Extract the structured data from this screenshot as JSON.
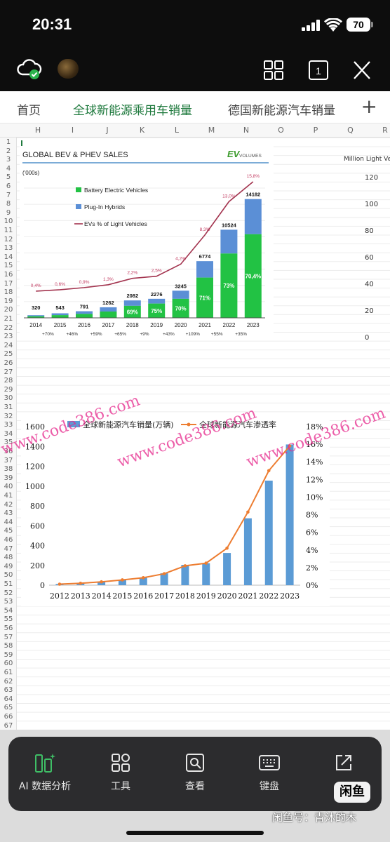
{
  "status": {
    "time": "20:31",
    "battery": "70"
  },
  "header": {
    "icons": [
      "cloud-check-icon",
      "avatar",
      "grid-icon",
      "window-count-icon",
      "close-icon"
    ],
    "window_count": "1"
  },
  "sheet_tabs": [
    {
      "label": "首页",
      "active": false
    },
    {
      "label": "全球新能源乘用车销量",
      "active": true
    },
    {
      "label": "德国新能源汽车销量",
      "active": false
    }
  ],
  "columns": [
    "H",
    "I",
    "J",
    "K",
    "L",
    "M",
    "N",
    "O",
    "P",
    "Q",
    "R"
  ],
  "rows": [
    "1",
    "2",
    "3",
    "4",
    "5",
    "6",
    "7",
    "8",
    "9",
    "10",
    "11",
    "12",
    "13",
    "14",
    "15",
    "16",
    "17",
    "18",
    "19",
    "20",
    "21",
    "22",
    "23",
    "24",
    "25",
    "26",
    "27",
    "28",
    "29",
    "30",
    "31",
    "32",
    "33",
    "34",
    "35",
    "36",
    "37",
    "38",
    "39",
    "40",
    "41",
    "42",
    "43",
    "44",
    "45",
    "46",
    "47",
    "48",
    "49",
    "50",
    "51",
    "52",
    "53",
    "54",
    "55",
    "56",
    "57",
    "58",
    "59",
    "60",
    "61",
    "62",
    "63",
    "64",
    "65",
    "66",
    "67"
  ],
  "chart_data": [
    {
      "type": "bar",
      "stacked": true,
      "title": "GLOBAL BEV & PHEV SALES",
      "brand": "EV VOLUMES",
      "unit_label": "('000s)",
      "categories": [
        "2014",
        "2015",
        "2016",
        "2017",
        "2018",
        "2019",
        "2020",
        "2021",
        "2022",
        "2023"
      ],
      "totals": [
        320,
        543,
        791,
        1262,
        2082,
        2276,
        3245,
        6774,
        10524,
        14182
      ],
      "bev_share_labels": [
        "",
        "",
        "",
        "",
        "69%",
        "75%",
        "70%",
        "71%",
        "73%",
        "70,4%"
      ],
      "bev_share": [
        0.6,
        0.6,
        0.6,
        0.6,
        0.69,
        0.75,
        0.7,
        0.71,
        0.73,
        0.704
      ],
      "ev_pct_labels": [
        "0,4%",
        "0,6%",
        "0,9%",
        "1,3%",
        "2,2%",
        "2,5%",
        "4,2%",
        "8,3%",
        "13,0%",
        "15,8%"
      ],
      "ev_pct": [
        0.4,
        0.6,
        0.9,
        1.3,
        2.2,
        2.5,
        4.2,
        8.3,
        13.0,
        15.8
      ],
      "growth_labels": [
        "+70%",
        "+46%",
        "+59%",
        "+65%",
        "+9%",
        "+43%",
        "+109%",
        "+55%",
        "+35%"
      ],
      "legend": [
        "Battery Electric Vehicles",
        "Plug-In Hybrids",
        "EVs % of Light Vehicles"
      ],
      "colors": {
        "bev": "#22c244",
        "phev": "#5b8fd6",
        "line": "#a3344f"
      }
    },
    {
      "type": "bar+line",
      "categories": [
        "2012",
        "2013",
        "2014",
        "2015",
        "2016",
        "2017",
        "2018",
        "2019",
        "2020",
        "2021",
        "2022",
        "2023"
      ],
      "series": [
        {
          "name": "全球新能源汽车销量(万辆)",
          "type": "bar",
          "values": [
            12,
            20,
            32,
            55,
            75,
            120,
            205,
            222,
            325,
            675,
            1055,
            1420
          ]
        },
        {
          "name": "全球新能源汽车渗透率",
          "type": "line",
          "values": [
            0.12,
            0.22,
            0.38,
            0.6,
            0.85,
            1.3,
            2.2,
            2.5,
            4.2,
            8.3,
            13.0,
            15.8
          ]
        }
      ],
      "ylim": [
        0,
        1600
      ],
      "yticks": [
        "0",
        "200",
        "400",
        "600",
        "800",
        "1000",
        "1200",
        "1400",
        "1600"
      ],
      "y2lim": [
        0,
        18
      ],
      "y2ticks": [
        "0%",
        "2%",
        "4%",
        "6%",
        "8%",
        "10%",
        "12%",
        "14%",
        "16%",
        "18%"
      ],
      "colors": {
        "bar": "#5b9bd5",
        "line": "#ed7d31"
      }
    }
  ],
  "partial_chart": {
    "ylabel": "Million Light Vehi",
    "ticks": [
      "120",
      "100",
      "80",
      "60",
      "40",
      "20",
      "0"
    ]
  },
  "watermark": "www.code386.com",
  "toolbar": [
    {
      "label": "AI 数据分析",
      "icon": "ai-analysis-icon"
    },
    {
      "label": "工具",
      "icon": "tools-icon"
    },
    {
      "label": "查看",
      "icon": "view-icon"
    },
    {
      "label": "键盘",
      "icon": "keyboard-icon"
    },
    {
      "label": "",
      "icon": "share-icon"
    }
  ],
  "overlay": {
    "badge": "闲鱼",
    "credit": "闲鱼号：青沐的木"
  }
}
